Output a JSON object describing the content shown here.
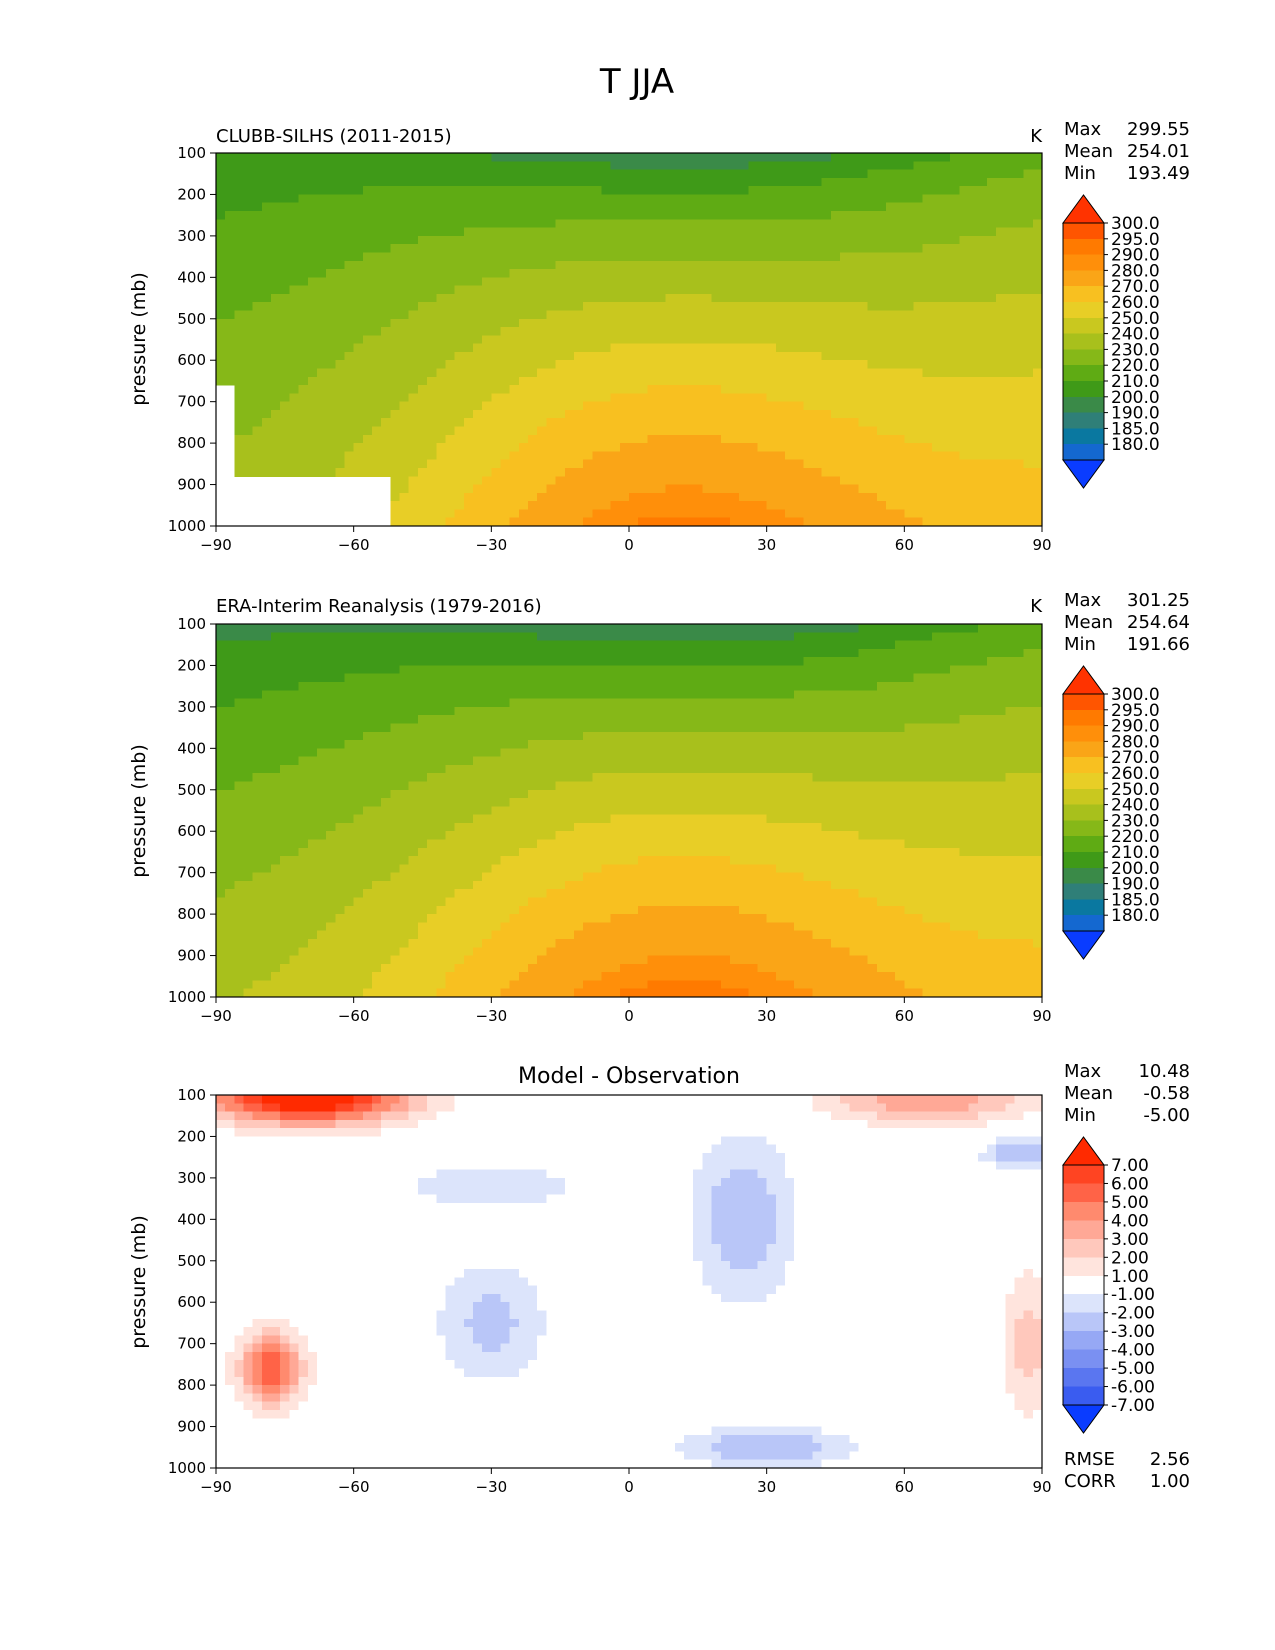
{
  "figure": {
    "title": "T JJA"
  },
  "chart_data": [
    {
      "type": "heatmap",
      "title": "CLUBB-SILHS (2011-2015)",
      "units": "K",
      "ylabel": "pressure (mb)",
      "xlabel": "",
      "xlim": [
        -90,
        90
      ],
      "ylim": [
        1000,
        100
      ],
      "x_ticks": [
        "−90",
        "−60",
        "−30",
        "0",
        "30",
        "60",
        "90"
      ],
      "y_ticks": [
        "100",
        "200",
        "300",
        "400",
        "500",
        "600",
        "700",
        "800",
        "900",
        "1000"
      ],
      "stats": {
        "max_label": "Max",
        "max": "299.55",
        "mean_label": "Mean",
        "mean": "254.01",
        "min_label": "Min",
        "min": "193.49"
      },
      "colorbar_labels": [
        "300.0",
        "295.0",
        "290.0",
        "280.0",
        "270.0",
        "260.0",
        "250.0",
        "240.0",
        "230.0",
        "220.0",
        "210.0",
        "200.0",
        "190.0",
        "185.0",
        "180.0"
      ],
      "colorbar_colors": [
        "#ff3300",
        "#ff5500",
        "#ff7a00",
        "#ff8f0a",
        "#faa517",
        "#f8c020",
        "#e8ce26",
        "#c9c81f",
        "#a8c01c",
        "#86b818",
        "#5fab14",
        "#3f9a18",
        "#3a8a48",
        "#2f7f78",
        "#0a78a0",
        "#1468d0",
        "#0a3cff"
      ],
      "missing_region": "land below surface (south pole)",
      "profile": {
        "base": 214,
        "sfc": 297,
        "tropo": 200,
        "sfc_pole_s": 243,
        "sfc_pole_n": 273,
        "tropo_pole_s": 210,
        "tropo_pole_n": 228
      }
    },
    {
      "type": "heatmap",
      "title": "ERA-Interim Reanalysis (1979-2016)",
      "units": "K",
      "ylabel": "pressure (mb)",
      "xlabel": "",
      "xlim": [
        -90,
        90
      ],
      "ylim": [
        1000,
        100
      ],
      "x_ticks": [
        "−90",
        "−60",
        "−30",
        "0",
        "30",
        "60",
        "90"
      ],
      "y_ticks": [
        "100",
        "200",
        "300",
        "400",
        "500",
        "600",
        "700",
        "800",
        "900",
        "1000"
      ],
      "stats": {
        "max_label": "Max",
        "max": "301.25",
        "mean_label": "Mean",
        "mean": "254.64",
        "min_label": "Min",
        "min": "191.66"
      },
      "colorbar_labels": [
        "300.0",
        "295.0",
        "290.0",
        "280.0",
        "270.0",
        "260.0",
        "250.0",
        "240.0",
        "230.0",
        "220.0",
        "210.0",
        "200.0",
        "190.0",
        "185.0",
        "180.0"
      ],
      "colorbar_colors": [
        "#ff3300",
        "#ff5500",
        "#ff7a00",
        "#ff8f0a",
        "#faa517",
        "#f8c020",
        "#e8ce26",
        "#c9c81f",
        "#a8c01c",
        "#86b818",
        "#5fab14",
        "#3f9a18",
        "#3a8a48",
        "#2f7f78",
        "#0a78a0",
        "#1468d0",
        "#0a3cff"
      ],
      "profile": {
        "base": 212,
        "sfc": 298,
        "tropo": 198,
        "sfc_pole_s": 247,
        "sfc_pole_n": 272,
        "tropo_pole_s": 205,
        "tropo_pole_n": 226
      }
    },
    {
      "type": "heatmap",
      "title": "Model - Observation",
      "units": "",
      "ylabel": "pressure (mb)",
      "xlabel": "",
      "xlim": [
        -90,
        90
      ],
      "ylim": [
        1000,
        100
      ],
      "x_ticks": [
        "−90",
        "−60",
        "−30",
        "0",
        "30",
        "60",
        "90"
      ],
      "y_ticks": [
        "100",
        "200",
        "300",
        "400",
        "500",
        "600",
        "700",
        "800",
        "900",
        "1000"
      ],
      "stats": {
        "max_label": "Max",
        "max": "10.48",
        "mean_label": "Mean",
        "mean": "-0.58",
        "min_label": "Min",
        "min": "-5.00"
      },
      "colorbar_labels": [
        "7.00",
        "6.00",
        "5.00",
        "4.00",
        "3.00",
        "2.00",
        "1.00",
        "-1.00",
        "-2.00",
        "-3.00",
        "-4.00",
        "-5.00",
        "-6.00",
        "-7.00"
      ],
      "colorbar_colors": [
        "#ff2a00",
        "#ff4422",
        "#ff6347",
        "#ff8a6e",
        "#ffa896",
        "#ffc8bc",
        "#ffe4dd",
        "#ffffff",
        "#dce4fb",
        "#b9c6f8",
        "#96a8f5",
        "#7a90f2",
        "#5a76f0",
        "#3a5cf0",
        "#0a3cff"
      ],
      "footer": {
        "rmse_label": "RMSE",
        "rmse": "2.56",
        "corr_label": "CORR",
        "corr": "1.00"
      },
      "features": [
        {
          "lat": -70,
          "p": 100,
          "v": 9,
          "sx": 22,
          "sy": 70
        },
        {
          "lat": 65,
          "p": 110,
          "v": 4,
          "sx": 22,
          "sy": 60
        },
        {
          "lat": -78,
          "p": 760,
          "v": 6,
          "sx": 7,
          "sy": 90
        },
        {
          "lat": -30,
          "p": 650,
          "v": -2.4,
          "sx": 12,
          "sy": 150
        },
        {
          "lat": 25,
          "p": 400,
          "v": -3,
          "sx": 11,
          "sy": 200
        },
        {
          "lat": 30,
          "p": 950,
          "v": -3,
          "sx": 20,
          "sy": 45
        },
        {
          "lat": 85,
          "p": 240,
          "v": -3,
          "sx": 8,
          "sy": 40
        },
        {
          "lat": -30,
          "p": 320,
          "v": -1.6,
          "sx": 25,
          "sy": 60
        },
        {
          "lat": 87,
          "p": 700,
          "v": 2.5,
          "sx": 6,
          "sy": 180
        }
      ]
    }
  ]
}
